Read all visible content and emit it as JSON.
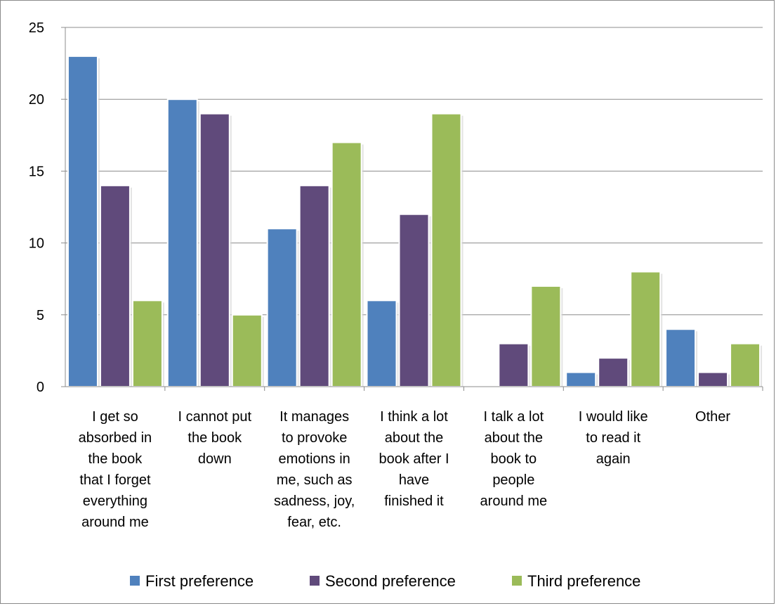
{
  "chart_data": {
    "type": "bar",
    "categories": [
      [
        "I get so",
        "absorbed in",
        "the book",
        "that I forget",
        "everything",
        "around me"
      ],
      [
        "I cannot put",
        "the book",
        "down"
      ],
      [
        "It manages",
        "to provoke",
        "emotions in",
        "me, such as",
        "sadness, joy,",
        "fear, etc."
      ],
      [
        "I think a lot",
        "about the",
        "book after I",
        "have",
        "finished it"
      ],
      [
        "I talk a lot",
        "about the",
        "book to",
        "people",
        "around me"
      ],
      [
        "I would like",
        "to read it",
        "again"
      ],
      [
        "Other"
      ]
    ],
    "series": [
      {
        "name": "First preference",
        "color": "#4f81bd",
        "values": [
          23,
          20,
          11,
          6,
          0,
          1,
          4
        ]
      },
      {
        "name": "Second preference",
        "color": "#604a7b",
        "values": [
          14,
          19,
          14,
          12,
          3,
          2,
          1
        ]
      },
      {
        "name": "Third preference",
        "color": "#9bbb59",
        "values": [
          6,
          5,
          17,
          19,
          7,
          8,
          3
        ]
      }
    ],
    "ylim": [
      0,
      25
    ],
    "yticks": [
      "0",
      "5",
      "10",
      "15",
      "20",
      "25"
    ],
    "grid": true,
    "legend_position": "bottom",
    "title": "",
    "xlabel": "",
    "ylabel": ""
  }
}
